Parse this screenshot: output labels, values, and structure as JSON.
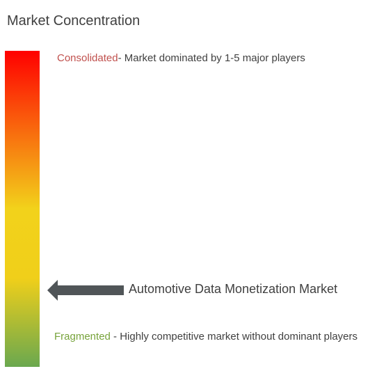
{
  "title": "Market Concentration",
  "scale": {
    "top_color": "#ff0000",
    "middle_color": "#f2d21b",
    "bottom_color": "#6aa84f",
    "arrow_color": "#505558"
  },
  "consolidated": {
    "term": "Consolidated",
    "description": "- Market dominated by 1-5 major players",
    "term_color": "#c0504d"
  },
  "fragmented": {
    "term": "Fragmented",
    "description": " - Highly competitive market without dominant players",
    "term_color": "#77a33b"
  },
  "market": {
    "label": "Automotive Data Monetization Market",
    "position_fraction_from_top": 0.76
  }
}
